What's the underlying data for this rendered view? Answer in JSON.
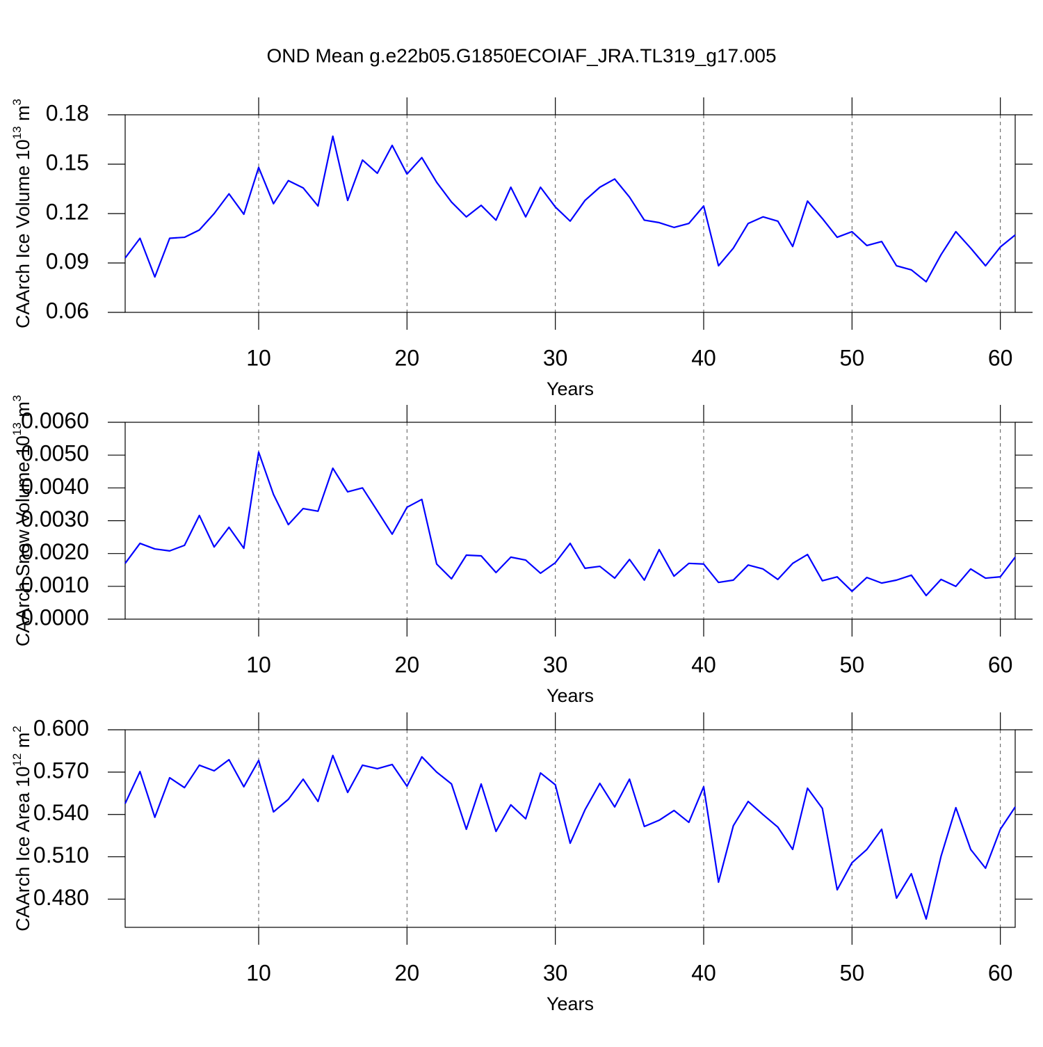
{
  "chart_data": [
    {
      "type": "line",
      "title": "OND Mean g.e22b05.G1850ECOIAF_JRA.TL319_g17.005",
      "xlabel": "Years",
      "ylabel": [
        "CAArch Ice Volume 10",
        "13",
        " m",
        "3"
      ],
      "x": [
        1,
        2,
        3,
        4,
        5,
        6,
        7,
        8,
        9,
        10,
        11,
        12,
        13,
        14,
        15,
        16,
        17,
        18,
        19,
        20,
        21,
        22,
        23,
        24,
        25,
        26,
        27,
        28,
        29,
        30,
        31,
        32,
        33,
        34,
        35,
        36,
        37,
        38,
        39,
        40,
        41,
        42,
        43,
        44,
        45,
        46,
        47,
        48,
        49,
        50,
        51,
        52,
        53,
        54,
        55,
        56,
        57,
        58,
        59,
        60,
        61
      ],
      "values": [
        0.093,
        0.105,
        0.0815,
        0.105,
        0.1056,
        0.11,
        0.12,
        0.132,
        0.1196,
        0.148,
        0.126,
        0.14,
        0.1356,
        0.1246,
        0.167,
        0.128,
        0.1525,
        0.1445,
        0.1614,
        0.144,
        0.154,
        0.139,
        0.127,
        0.118,
        0.125,
        0.116,
        0.136,
        0.118,
        0.136,
        0.124,
        0.1154,
        0.128,
        0.136,
        0.141,
        0.13,
        0.116,
        0.1145,
        0.1116,
        0.114,
        0.1246,
        0.0883,
        0.099,
        0.114,
        0.118,
        0.1154,
        0.1,
        0.1276,
        0.117,
        0.1056,
        0.109,
        0.1006,
        0.103,
        0.0883,
        0.0858,
        0.0786,
        0.095,
        0.109,
        0.099,
        0.0883,
        0.0997,
        0.107
      ],
      "color": "#0000ff",
      "xlim": [
        1,
        61
      ],
      "xticks": [
        10,
        20,
        30,
        40,
        50,
        60
      ],
      "ylim": [
        0.06,
        0.18
      ],
      "yticks": [
        0.06,
        0.09,
        0.12,
        0.15,
        0.18
      ],
      "xgrid": true
    },
    {
      "type": "line",
      "xlabel": "Years",
      "ylabel": [
        "CAArch Snow Volume 10",
        "13",
        " m",
        "3"
      ],
      "x": [
        1,
        2,
        3,
        4,
        5,
        6,
        7,
        8,
        9,
        10,
        11,
        12,
        13,
        14,
        15,
        16,
        17,
        18,
        19,
        20,
        21,
        22,
        23,
        24,
        25,
        26,
        27,
        28,
        29,
        30,
        31,
        32,
        33,
        34,
        35,
        36,
        37,
        38,
        39,
        40,
        41,
        42,
        43,
        44,
        45,
        46,
        47,
        48,
        49,
        50,
        51,
        52,
        53,
        54,
        55,
        56,
        57,
        58,
        59,
        60,
        61
      ],
      "values": [
        0.0017,
        0.00231,
        0.00214,
        0.00208,
        0.00225,
        0.00316,
        0.0022,
        0.0028,
        0.00216,
        0.00509,
        0.0038,
        0.00288,
        0.00337,
        0.00329,
        0.0046,
        0.00388,
        0.004,
        0.0033,
        0.00259,
        0.00341,
        0.00365,
        0.00168,
        0.00123,
        0.00195,
        0.00193,
        0.00142,
        0.00189,
        0.0018,
        0.0014,
        0.00172,
        0.00231,
        0.00155,
        0.00161,
        0.00125,
        0.00182,
        0.00119,
        0.00212,
        0.00131,
        0.0017,
        0.00168,
        0.00112,
        0.00119,
        0.00165,
        0.00153,
        0.00121,
        0.0017,
        0.00197,
        0.00117,
        0.00129,
        0.00085,
        0.00127,
        0.0011,
        0.00119,
        0.00134,
        0.00072,
        0.00121,
        0.001,
        0.00153,
        0.00125,
        0.00129,
        0.00189
      ],
      "color": "#0000ff",
      "xlim": [
        1,
        61
      ],
      "xticks": [
        10,
        20,
        30,
        40,
        50,
        60
      ],
      "ylim": [
        0,
        0.006
      ],
      "yticks": [
        {
          "value": 0,
          "label": "0.0000"
        },
        {
          "value": 0.001,
          "label": "0.0010"
        },
        {
          "value": 0.002,
          "label": "0.0020"
        },
        {
          "value": 0.003,
          "label": "0.0030"
        },
        {
          "value": 0.004,
          "label": "0.0040"
        },
        {
          "value": 0.005,
          "label": "0.0050"
        },
        {
          "value": 0.006,
          "label": "0.0060"
        }
      ],
      "xgrid": true
    },
    {
      "type": "line",
      "xlabel": "Years",
      "ylabel": [
        "CAArch Ice Area 10",
        "12",
        " m",
        "2"
      ],
      "x": [
        1,
        2,
        3,
        4,
        5,
        6,
        7,
        8,
        9,
        10,
        11,
        12,
        13,
        14,
        15,
        16,
        17,
        18,
        19,
        20,
        21,
        22,
        23,
        24,
        25,
        26,
        27,
        28,
        29,
        30,
        31,
        32,
        33,
        34,
        35,
        36,
        37,
        38,
        39,
        40,
        41,
        42,
        43,
        44,
        45,
        46,
        47,
        48,
        49,
        50,
        51,
        52,
        53,
        54,
        55,
        56,
        57,
        58,
        59,
        60,
        61
      ],
      "values": [
        0.5477,
        0.5704,
        0.538,
        0.566,
        0.559,
        0.5749,
        0.5709,
        0.5788,
        0.5596,
        0.5783,
        0.5418,
        0.5507,
        0.565,
        0.5492,
        0.5818,
        0.5556,
        0.5749,
        0.5724,
        0.5754,
        0.56,
        0.5808,
        0.57,
        0.5616,
        0.5295,
        0.5616,
        0.528,
        0.5468,
        0.5369,
        0.5694,
        0.561,
        0.5196,
        0.5433,
        0.562,
        0.5453,
        0.565,
        0.5315,
        0.5359,
        0.5428,
        0.5344,
        0.5596,
        0.492,
        0.532,
        0.5492,
        0.5399,
        0.531,
        0.5152,
        0.5586,
        0.5443,
        0.4866,
        0.5058,
        0.5152,
        0.5295,
        0.4807,
        0.498,
        0.4659,
        0.5103,
        0.5448,
        0.5152,
        0.5019,
        0.5295,
        0.5453
      ],
      "color": "#0000ff",
      "xlim": [
        1,
        61
      ],
      "xticks": [
        10,
        20,
        30,
        40,
        50,
        60
      ],
      "ylim": [
        0.46,
        0.6
      ],
      "yticks": [
        {
          "value": 0.48,
          "label": "0.480"
        },
        {
          "value": 0.51,
          "label": "0.510"
        },
        {
          "value": 0.54,
          "label": "0.540"
        },
        {
          "value": 0.57,
          "label": "0.570"
        },
        {
          "value": 0.6,
          "label": "0.600"
        }
      ],
      "xgrid": true
    }
  ]
}
